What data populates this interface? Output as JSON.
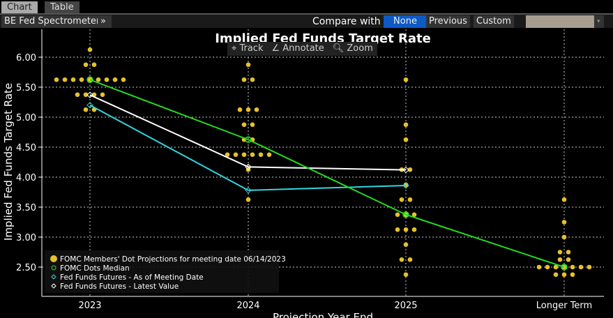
{
  "tabs": [
    "Chart",
    "Table"
  ],
  "toolbar": {
    "app": "BE Fed Spectrometer",
    "more": "»",
    "compare_label": "Compare with",
    "options": [
      "None",
      "Previous",
      "Custom"
    ],
    "selected": "None",
    "dropdown_arrow": "▾"
  },
  "controls": {
    "track": "Track",
    "annotate": "Annotate",
    "zoom": "Zoom"
  },
  "chart_data": {
    "type": "scatter",
    "title": "Implied Fed Funds Target Rate",
    "xlabel": "Projection Year End",
    "ylabel": "Implied Fed Funds Target Rate",
    "categories": [
      "2023",
      "2024",
      "2025",
      "Longer Term"
    ],
    "ylim": [
      2.25,
      6.25
    ],
    "yticks": [
      "2.50",
      "3.00",
      "3.50",
      "4.00",
      "4.50",
      "5.00",
      "5.50",
      "6.00"
    ],
    "grid": true,
    "legend_placement": "bottom-left",
    "dots": [
      [
        [
          6.125,
          1
        ],
        [
          5.875,
          2
        ],
        [
          5.625,
          9
        ],
        [
          5.375,
          4
        ],
        [
          5.125,
          2
        ]
      ],
      [
        [
          5.875,
          1
        ],
        [
          5.625,
          2
        ],
        [
          5.125,
          3
        ],
        [
          4.875,
          2
        ],
        [
          4.625,
          2
        ],
        [
          4.375,
          6
        ],
        [
          4.125,
          1
        ],
        [
          3.625,
          1
        ]
      ],
      [
        [
          5.625,
          1
        ],
        [
          4.875,
          1
        ],
        [
          4.625,
          1
        ],
        [
          4.125,
          2
        ],
        [
          3.875,
          1
        ],
        [
          3.625,
          2
        ],
        [
          3.375,
          3
        ],
        [
          3.125,
          3
        ],
        [
          2.875,
          1
        ],
        [
          2.625,
          2
        ],
        [
          2.375,
          1
        ]
      ],
      [
        [
          3.625,
          1
        ],
        [
          3.25,
          1
        ],
        [
          3.0,
          1
        ],
        [
          2.75,
          2
        ],
        [
          2.625,
          2
        ],
        [
          2.5,
          7
        ],
        [
          2.375,
          3
        ]
      ]
    ],
    "series": [
      {
        "name": "FOMC Members' Dot Projections for meeting date 06/14/2023",
        "color": "#e6c229"
      },
      {
        "name": "FOMC Dots Median",
        "values": [
          5.625,
          4.625,
          3.375,
          2.5
        ],
        "color": "#22dd22"
      },
      {
        "name": "Fed Funds Futures - As of Meeting Date",
        "values": [
          5.2,
          3.78,
          3.86,
          null
        ],
        "color": "#33d6e0"
      },
      {
        "name": "Fed Funds Futures - Latest Value",
        "values": [
          5.37,
          4.17,
          4.12,
          null
        ],
        "color": "#ffffff"
      }
    ]
  }
}
